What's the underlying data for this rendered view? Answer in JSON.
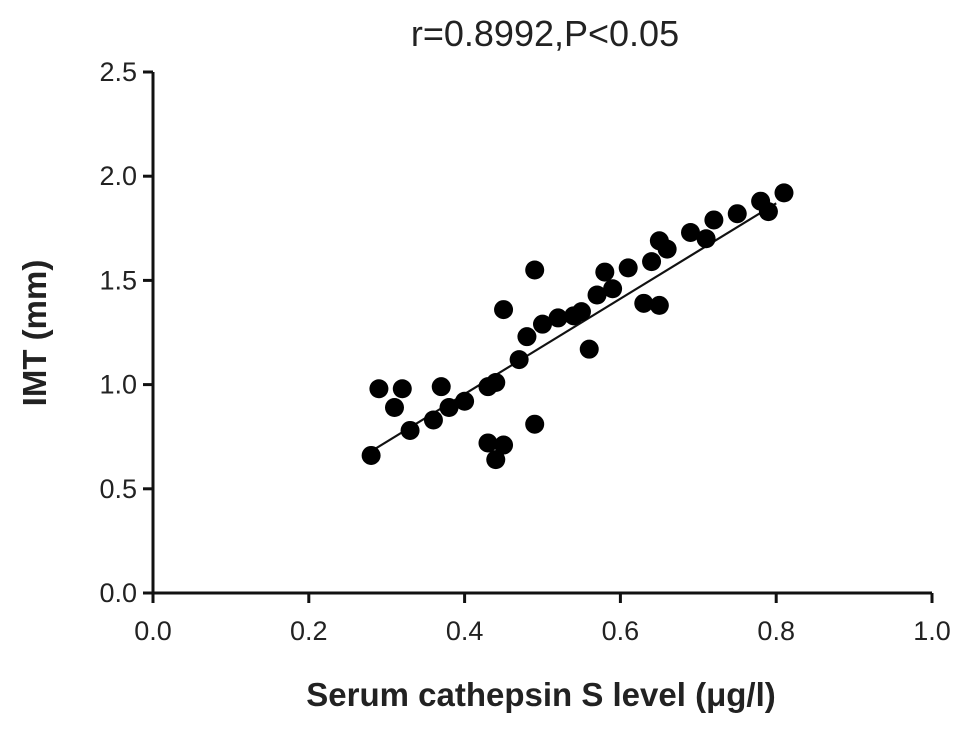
{
  "chart_data": {
    "type": "scatter",
    "title": "r=0.8992,P<0.05",
    "xlabel": "Serum cathepsin S level  (μg/l)",
    "ylabel": "IMT (mm)",
    "xlim": [
      0.0,
      1.0
    ],
    "ylim": [
      0.0,
      2.5
    ],
    "x_ticks": [
      "0.0",
      "0.2",
      "0.4",
      "0.6",
      "0.8",
      "1.0"
    ],
    "y_ticks": [
      "0.0",
      "0.5",
      "1.0",
      "1.5",
      "2.0",
      "2.5"
    ],
    "grid": false,
    "legend": "none",
    "point_color": "#000000",
    "points": [
      {
        "x": 0.28,
        "y": 0.66
      },
      {
        "x": 0.29,
        "y": 0.98
      },
      {
        "x": 0.31,
        "y": 0.89
      },
      {
        "x": 0.32,
        "y": 0.98
      },
      {
        "x": 0.33,
        "y": 0.78
      },
      {
        "x": 0.36,
        "y": 0.83
      },
      {
        "x": 0.37,
        "y": 0.99
      },
      {
        "x": 0.38,
        "y": 0.89
      },
      {
        "x": 0.4,
        "y": 0.92
      },
      {
        "x": 0.43,
        "y": 0.99
      },
      {
        "x": 0.43,
        "y": 0.72
      },
      {
        "x": 0.44,
        "y": 1.01
      },
      {
        "x": 0.44,
        "y": 0.64
      },
      {
        "x": 0.45,
        "y": 0.71
      },
      {
        "x": 0.45,
        "y": 1.36
      },
      {
        "x": 0.47,
        "y": 1.12
      },
      {
        "x": 0.48,
        "y": 1.23
      },
      {
        "x": 0.49,
        "y": 1.55
      },
      {
        "x": 0.49,
        "y": 0.81
      },
      {
        "x": 0.5,
        "y": 1.29
      },
      {
        "x": 0.52,
        "y": 1.32
      },
      {
        "x": 0.54,
        "y": 1.33
      },
      {
        "x": 0.55,
        "y": 1.35
      },
      {
        "x": 0.56,
        "y": 1.17
      },
      {
        "x": 0.57,
        "y": 1.43
      },
      {
        "x": 0.58,
        "y": 1.54
      },
      {
        "x": 0.59,
        "y": 1.46
      },
      {
        "x": 0.61,
        "y": 1.56
      },
      {
        "x": 0.63,
        "y": 1.39
      },
      {
        "x": 0.64,
        "y": 1.59
      },
      {
        "x": 0.65,
        "y": 1.69
      },
      {
        "x": 0.65,
        "y": 1.38
      },
      {
        "x": 0.66,
        "y": 1.65
      },
      {
        "x": 0.69,
        "y": 1.73
      },
      {
        "x": 0.71,
        "y": 1.7
      },
      {
        "x": 0.72,
        "y": 1.79
      },
      {
        "x": 0.75,
        "y": 1.82
      },
      {
        "x": 0.78,
        "y": 1.88
      },
      {
        "x": 0.79,
        "y": 1.83
      },
      {
        "x": 0.81,
        "y": 1.92
      }
    ],
    "fit_line": {
      "x": [
        0.28,
        0.8
      ],
      "y": [
        0.68,
        1.87
      ]
    }
  }
}
